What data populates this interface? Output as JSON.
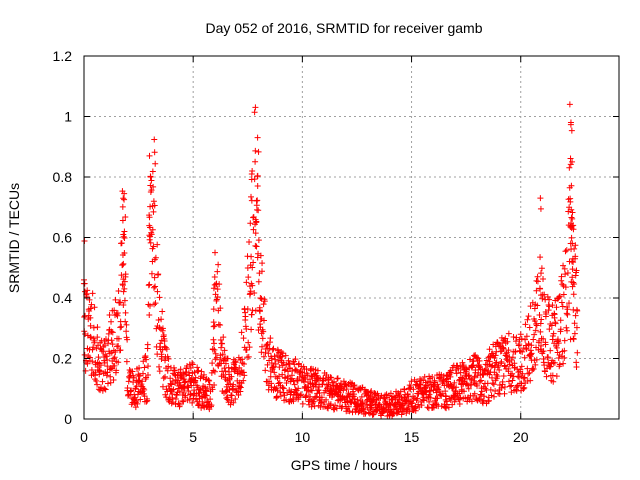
{
  "chart_data": {
    "type": "scatter",
    "title": "Day 052 of 2016, SRMTID for receiver gamb",
    "xlabel": "GPS time / hours",
    "ylabel": "SRMTID / TECUs",
    "xlim": [
      0,
      24.5
    ],
    "ylim": [
      0,
      1.2
    ],
    "x_ticks": [
      0,
      5,
      10,
      15,
      20
    ],
    "x_tick_labels": [
      "0",
      "5",
      "10",
      "15",
      "20"
    ],
    "y_ticks": [
      0,
      0.2,
      0.4,
      0.6,
      0.8,
      1.0,
      1.2
    ],
    "y_tick_labels": [
      "0",
      "0.2",
      "0.4",
      "0.6",
      "0.8",
      "1",
      "1.2"
    ],
    "grid": true,
    "marker": "+",
    "color": "#ff0000",
    "series": [
      {
        "name": "SRMTID",
        "envelope": [
          [
            0.0,
            0.46
          ],
          [
            0.1,
            0.3
          ],
          [
            0.3,
            0.32
          ],
          [
            0.5,
            0.28
          ],
          [
            0.8,
            0.18
          ],
          [
            1.0,
            0.22
          ],
          [
            1.3,
            0.26
          ],
          [
            1.6,
            0.3
          ],
          [
            1.8,
            0.58
          ],
          [
            1.9,
            0.5
          ],
          [
            2.0,
            0.12
          ],
          [
            2.3,
            0.1
          ],
          [
            2.6,
            0.12
          ],
          [
            2.9,
            0.15
          ],
          [
            3.05,
            0.6
          ],
          [
            3.2,
            0.7
          ],
          [
            3.35,
            0.42
          ],
          [
            3.5,
            0.28
          ],
          [
            3.8,
            0.16
          ],
          [
            4.2,
            0.1
          ],
          [
            4.6,
            0.12
          ],
          [
            5.0,
            0.14
          ],
          [
            5.4,
            0.1
          ],
          [
            5.8,
            0.08
          ],
          [
            6.1,
            0.4
          ],
          [
            6.3,
            0.22
          ],
          [
            6.7,
            0.12
          ],
          [
            7.0,
            0.14
          ],
          [
            7.3,
            0.25
          ],
          [
            7.6,
            0.45
          ],
          [
            7.8,
            0.7
          ],
          [
            8.0,
            0.5
          ],
          [
            8.2,
            0.3
          ],
          [
            8.5,
            0.2
          ],
          [
            9.0,
            0.15
          ],
          [
            9.5,
            0.14
          ],
          [
            10.0,
            0.12
          ],
          [
            10.5,
            0.11
          ],
          [
            11.0,
            0.1
          ],
          [
            11.5,
            0.09
          ],
          [
            12.0,
            0.08
          ],
          [
            12.5,
            0.07
          ],
          [
            13.0,
            0.06
          ],
          [
            13.5,
            0.05
          ],
          [
            14.0,
            0.05
          ],
          [
            14.5,
            0.06
          ],
          [
            15.0,
            0.08
          ],
          [
            15.5,
            0.09
          ],
          [
            16.0,
            0.1
          ],
          [
            16.5,
            0.1
          ],
          [
            17.0,
            0.12
          ],
          [
            17.5,
            0.13
          ],
          [
            18.0,
            0.15
          ],
          [
            18.3,
            0.1
          ],
          [
            18.6,
            0.16
          ],
          [
            19.0,
            0.18
          ],
          [
            19.5,
            0.2
          ],
          [
            20.0,
            0.19
          ],
          [
            20.4,
            0.24
          ],
          [
            20.8,
            0.42
          ],
          [
            21.0,
            0.34
          ],
          [
            21.4,
            0.26
          ],
          [
            21.8,
            0.3
          ],
          [
            22.2,
            0.55
          ],
          [
            22.4,
            0.55
          ],
          [
            22.6,
            0.28
          ]
        ],
        "spikes": [
          [
            0.0,
            0.46
          ],
          [
            1.8,
            0.61
          ],
          [
            1.85,
            0.62
          ],
          [
            3.0,
            0.87
          ],
          [
            3.05,
            0.8
          ],
          [
            3.2,
            0.72
          ],
          [
            6.0,
            0.55
          ],
          [
            7.7,
            0.82
          ],
          [
            7.85,
            1.03
          ],
          [
            7.95,
            0.93
          ],
          [
            8.1,
            0.54
          ],
          [
            20.9,
            0.73
          ],
          [
            22.25,
            1.04
          ],
          [
            22.3,
            0.98
          ],
          [
            22.35,
            0.85
          ],
          [
            22.4,
            0.64
          ]
        ]
      }
    ]
  }
}
